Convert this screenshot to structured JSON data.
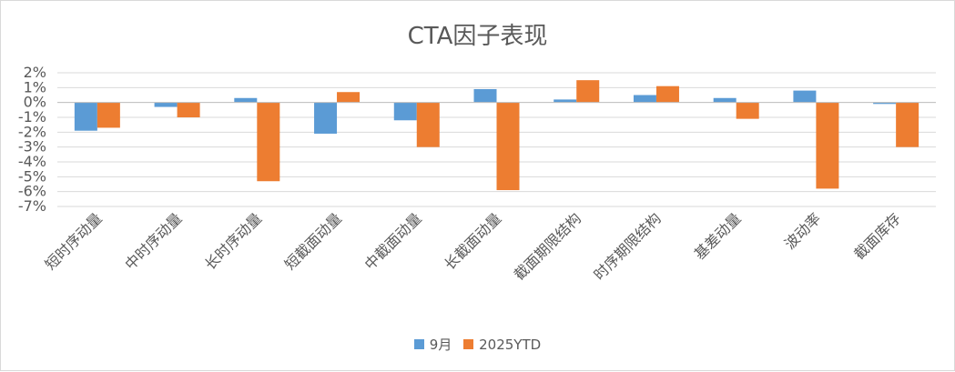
{
  "chart_data": {
    "type": "bar",
    "title": "CTA因子表现",
    "categories": [
      "短时序动量",
      "中时序动量",
      "长时序动量",
      "短截面动量",
      "中截面动量",
      "长截面动量",
      "截面期限结构",
      "时序期限结构",
      "基差动量",
      "波动率",
      "截面库存"
    ],
    "series": [
      {
        "name": "9月",
        "color": "#5b9bd5",
        "values": [
          -1.9,
          -0.3,
          0.3,
          -2.1,
          -1.2,
          0.9,
          0.2,
          0.5,
          0.3,
          0.8,
          -0.1
        ]
      },
      {
        "name": "2025YTD",
        "color": "#ed7d31",
        "values": [
          -1.7,
          -1.0,
          -5.3,
          0.7,
          -3.0,
          -5.9,
          1.5,
          1.1,
          -1.1,
          -5.8,
          -3.0
        ]
      }
    ],
    "ylim": [
      -7,
      2
    ],
    "yticks": [
      2,
      1,
      0,
      -1,
      -2,
      -3,
      -4,
      -5,
      -6,
      -7
    ],
    "ytick_labels": [
      "2%",
      "1%",
      "0%",
      "-1%",
      "-2%",
      "-3%",
      "-4%",
      "-5%",
      "-6%",
      "-7%"
    ],
    "grid": true,
    "legend": "bottom"
  }
}
